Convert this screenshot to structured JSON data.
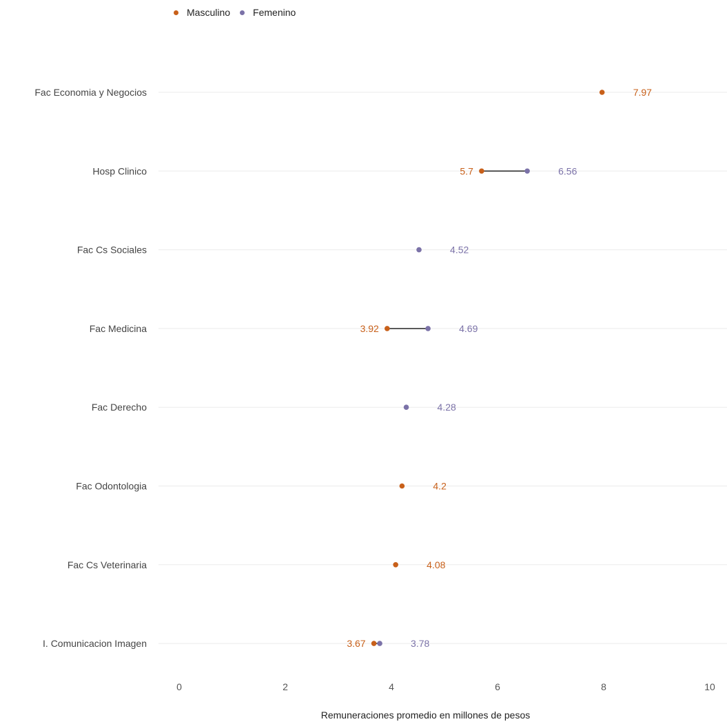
{
  "legend": {
    "items": [
      {
        "label": "Masculino",
        "color": "#c8601a"
      },
      {
        "label": "Femenino",
        "color": "#7b72a8"
      }
    ]
  },
  "chart_data": {
    "type": "dumbbell",
    "xlabel": "Remuneraciones promedio en millones de pesos",
    "xlim": [
      0,
      10
    ],
    "x_ticks": [
      "0",
      "2",
      "4",
      "6",
      "8",
      "10"
    ],
    "grid": true,
    "legend_position": "top-left",
    "categories": [
      "Fac Economia y Negocios",
      "Hosp Clinico",
      "Fac Cs Sociales",
      "Fac Medicina",
      "Fac Derecho",
      "Fac Odontologia",
      "Fac Cs Veterinaria",
      "I. Comunicacion Imagen"
    ],
    "series": [
      {
        "name": "Masculino",
        "color": "#c8601a",
        "values": [
          7.97,
          5.7,
          null,
          3.92,
          null,
          4.2,
          4.08,
          3.67
        ]
      },
      {
        "name": "Femenino",
        "color": "#7b72a8",
        "values": [
          null,
          6.56,
          4.52,
          4.69,
          4.28,
          null,
          null,
          3.78
        ]
      }
    ]
  }
}
